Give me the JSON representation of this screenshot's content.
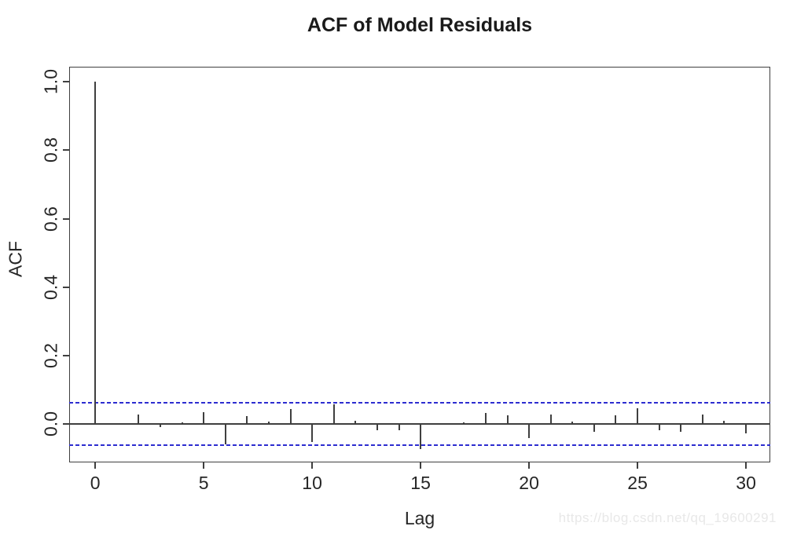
{
  "watermark": {
    "text": "https://blog.csdn.net/qq_19600291"
  },
  "chart_data": {
    "type": "bar",
    "title": "ACF of Model Residuals",
    "xlabel": "Lag",
    "ylabel": "ACF",
    "lags": [
      0,
      1,
      2,
      3,
      4,
      5,
      6,
      7,
      8,
      9,
      10,
      11,
      12,
      13,
      14,
      15,
      16,
      17,
      18,
      19,
      20,
      21,
      22,
      23,
      24,
      25,
      26,
      27,
      28,
      29,
      30
    ],
    "acf_values": [
      1.0,
      0.002,
      0.027,
      -0.008,
      0.006,
      0.034,
      -0.06,
      0.024,
      0.008,
      0.044,
      -0.053,
      0.057,
      0.009,
      -0.019,
      -0.017,
      -0.074,
      0.001,
      0.006,
      0.033,
      0.025,
      -0.04,
      0.029,
      0.008,
      -0.023,
      0.025,
      0.047,
      -0.019,
      -0.023,
      0.027,
      0.009,
      -0.027
    ],
    "confidence_band": 0.062,
    "confidence_band_style": "dashed",
    "x_ticks": [
      0,
      5,
      10,
      15,
      20,
      25,
      30
    ],
    "x_tick_labels": [
      "0",
      "5",
      "10",
      "15",
      "20",
      "25",
      "30"
    ],
    "y_ticks": [
      0.0,
      0.2,
      0.4,
      0.6,
      0.8,
      1.0
    ],
    "y_tick_labels": [
      "0.0",
      "0.2",
      "0.4",
      "0.6",
      "0.8",
      "1.0"
    ],
    "xlim": [
      -1.2,
      31.12
    ],
    "ylim": [
      -0.112,
      1.044
    ],
    "grid": false,
    "legend": null,
    "colors": {
      "spike": "#3f3f3f",
      "axis": "#3f3f3f",
      "confidence_band": "#2d2dd0",
      "text": "#262626",
      "title": "#1a1a1a",
      "watermark": "#e8e8e8",
      "background": "#ffffff"
    }
  }
}
